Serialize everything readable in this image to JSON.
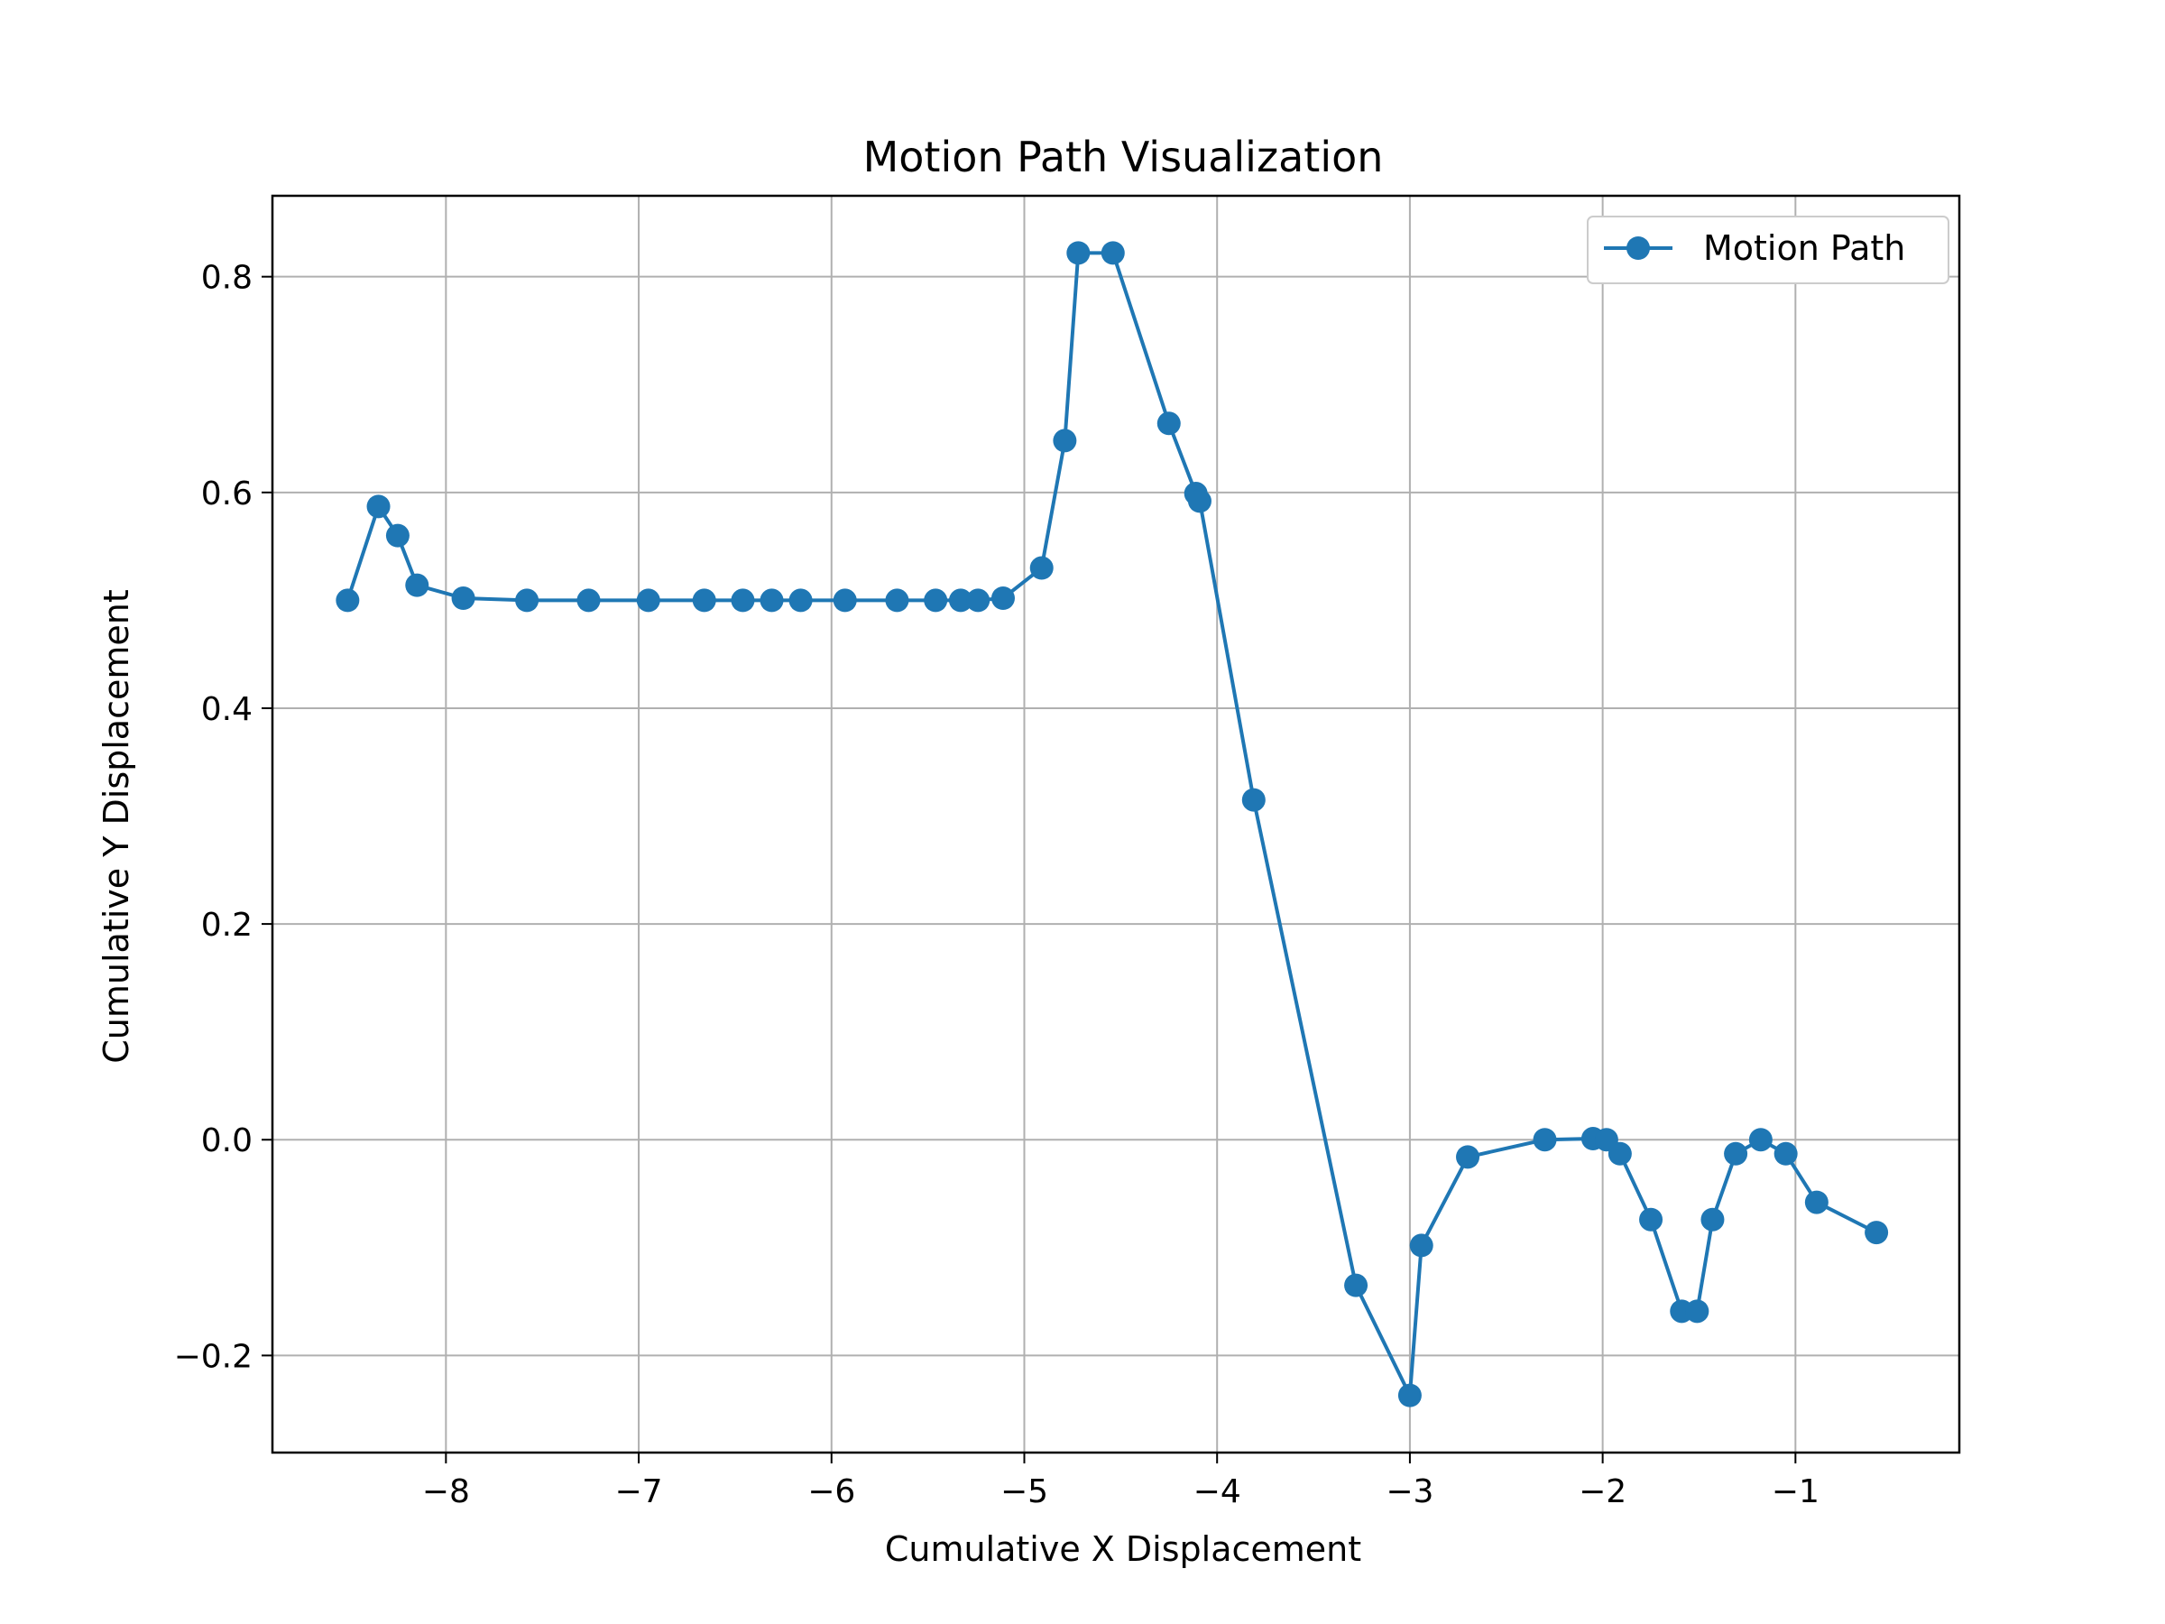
{
  "chart_data": {
    "type": "line",
    "title": "Motion Path Visualization",
    "xlabel": "Cumulative X Displacement",
    "ylabel": "Cumulative Y Displacement",
    "xlim": [
      -8.9,
      -0.15
    ],
    "ylim": [
      -0.29,
      0.875
    ],
    "xticks": [
      -8,
      -7,
      -6,
      -5,
      -4,
      -3,
      -2,
      -1
    ],
    "xtick_labels": [
      "−8",
      "−7",
      "−6",
      "−5",
      "−4",
      "−3",
      "−2",
      "−1"
    ],
    "yticks": [
      -0.2,
      0.0,
      0.2,
      0.4,
      0.6,
      0.8
    ],
    "ytick_labels": [
      "−0.2",
      "0.0",
      "0.2",
      "0.4",
      "0.6",
      "0.8"
    ],
    "grid": true,
    "legend_position": "top-right",
    "series": [
      {
        "name": "Motion Path",
        "color": "#1f77b4",
        "marker": "circle",
        "x": [
          -8.51,
          -8.35,
          -8.25,
          -8.15,
          -7.91,
          -7.58,
          -7.26,
          -6.95,
          -6.66,
          -6.46,
          -6.31,
          -6.16,
          -5.93,
          -5.66,
          -5.46,
          -5.33,
          -5.24,
          -5.11,
          -4.91,
          -4.79,
          -4.72,
          -4.54,
          -4.25,
          -4.11,
          -4.09,
          -3.81,
          -3.28,
          -3.0,
          -2.94,
          -2.7,
          -2.3,
          -2.05,
          -1.98,
          -1.91,
          -1.75,
          -1.59,
          -1.51,
          -1.43,
          -1.31,
          -1.18,
          -1.05,
          -0.89,
          -0.58
        ],
        "y": [
          0.5,
          0.587,
          0.56,
          0.514,
          0.502,
          0.5,
          0.5,
          0.5,
          0.5,
          0.5,
          0.5,
          0.5,
          0.5,
          0.5,
          0.5,
          0.5,
          0.5,
          0.502,
          0.53,
          0.648,
          0.822,
          0.822,
          0.664,
          0.599,
          0.592,
          0.315,
          -0.135,
          -0.237,
          -0.098,
          -0.016,
          0.0,
          0.001,
          0.0,
          -0.013,
          -0.074,
          -0.159,
          -0.159,
          -0.074,
          -0.013,
          0.0,
          -0.013,
          -0.058,
          -0.086
        ]
      }
    ]
  }
}
